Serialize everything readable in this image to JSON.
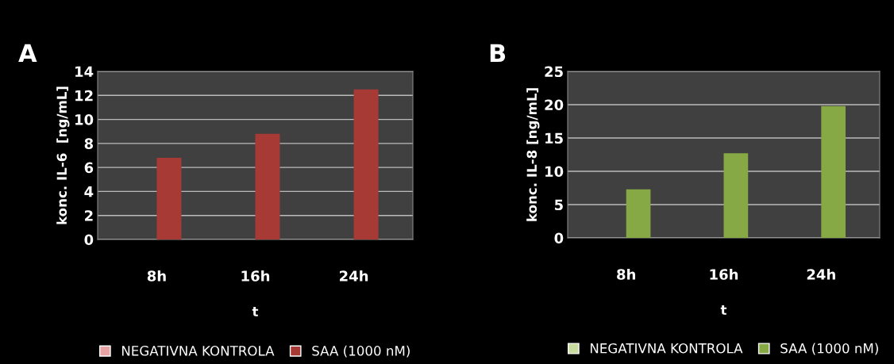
{
  "chart_data": [
    {
      "type": "bar",
      "title": "A",
      "xlabel": "t",
      "ylabel": "konc. IL-6  [ng/mL]",
      "categories": [
        "8h",
        "16h",
        "24h"
      ],
      "series": [
        {
          "name": "NEGATIVNA KONTROLA",
          "color": "#e8a4a4",
          "values": [
            0,
            0,
            0
          ]
        },
        {
          "name": "SAA (1000 nM)",
          "color": "#a83a36",
          "values": [
            6.8,
            8.8,
            12.5
          ]
        }
      ],
      "ylim": [
        0,
        14
      ],
      "yticks": [
        0,
        2,
        4,
        6,
        8,
        10,
        12,
        14
      ],
      "grid": "y",
      "legend": "bottom"
    },
    {
      "type": "bar",
      "title": "B",
      "xlabel": "t",
      "ylabel": "konc. IL-8 [ng/mL]",
      "categories": [
        "8h",
        "16h",
        "24h"
      ],
      "series": [
        {
          "name": "NEGATIVNA KONTROLA",
          "color": "#c8dca0",
          "values": [
            0,
            0,
            0
          ]
        },
        {
          "name": "SAA (1000 nM)",
          "color": "#86a845",
          "values": [
            7.3,
            12.7,
            19.8
          ]
        }
      ],
      "ylim": [
        0,
        25
      ],
      "yticks": [
        0,
        5,
        10,
        15,
        20,
        25
      ],
      "grid": "y",
      "legend": "bottom"
    }
  ]
}
